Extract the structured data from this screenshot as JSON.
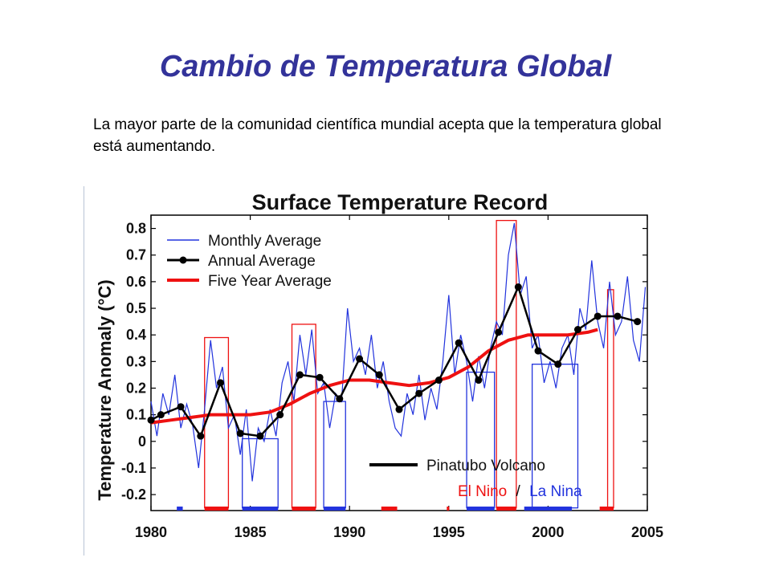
{
  "slide": {
    "title": "Cambio de Temperatura Global",
    "body": "La mayor parte de la comunidad científica mundial acepta que la temperatura global está aumentando."
  },
  "colors": {
    "title": "#33339a",
    "monthly": "#2233dd",
    "annual": "#000000",
    "five_year": "#ee1111",
    "el_nino": "#ee1111",
    "la_nina": "#2233dd",
    "pinatubo": "#000000"
  },
  "chart_data": {
    "type": "line",
    "title": "Surface Temperature Record",
    "xlabel": "",
    "ylabel": "Temperature Anomaly (°C)",
    "xlim": [
      1980,
      2005
    ],
    "ylim": [
      -0.26,
      0.85
    ],
    "x_ticks": [
      1980,
      1985,
      1990,
      1995,
      2000,
      2005
    ],
    "y_ticks": [
      -0.2,
      -0.1,
      0,
      0.1,
      0.2,
      0.3,
      0.4,
      0.5,
      0.6,
      0.7,
      0.8
    ],
    "y_tick_labels": [
      "-0.2",
      "-0.1",
      "0",
      "0.1",
      "0.2",
      "0.3",
      "0.4",
      "0.5",
      "0.6",
      "0.7",
      "0.8"
    ],
    "legend": [
      "Monthly Average",
      "Annual Average",
      "Five Year Average"
    ],
    "legend_position": "top-left",
    "series": [
      {
        "name": "Annual Average",
        "x": [
          1980,
          1980.5,
          1981.5,
          1982.5,
          1983.5,
          1984.5,
          1985.5,
          1986.5,
          1987.5,
          1988.5,
          1989.5,
          1990.5,
          1991.5,
          1992.5,
          1993.5,
          1994.5,
          1995.5,
          1996.5,
          1997.5,
          1998.5,
          1999.5,
          2000.5,
          2001.5,
          2002.5,
          2003.5,
          2004.5
        ],
        "y": [
          0.08,
          0.1,
          0.13,
          0.02,
          0.22,
          0.03,
          0.02,
          0.1,
          0.25,
          0.24,
          0.16,
          0.31,
          0.25,
          0.12,
          0.18,
          0.23,
          0.37,
          0.23,
          0.41,
          0.58,
          0.34,
          0.29,
          0.42,
          0.47,
          0.47,
          0.45
        ]
      },
      {
        "name": "Five Year Average",
        "x": [
          1980,
          1981,
          1982,
          1983,
          1984,
          1985,
          1986,
          1987,
          1988,
          1989,
          1990,
          1991,
          1992,
          1993,
          1994,
          1995,
          1996,
          1997,
          1998,
          1999,
          2000,
          2001,
          2002,
          2002.5
        ],
        "y": [
          0.07,
          0.08,
          0.09,
          0.1,
          0.1,
          0.1,
          0.11,
          0.14,
          0.18,
          0.21,
          0.23,
          0.23,
          0.22,
          0.21,
          0.22,
          0.24,
          0.28,
          0.34,
          0.38,
          0.4,
          0.4,
          0.4,
          0.41,
          0.42
        ]
      },
      {
        "name": "Monthly Average",
        "x": [
          1980,
          1980.3,
          1980.6,
          1980.9,
          1981.2,
          1981.5,
          1981.8,
          1982.1,
          1982.4,
          1982.7,
          1983.0,
          1983.3,
          1983.6,
          1983.9,
          1984.2,
          1984.5,
          1984.8,
          1985.1,
          1985.4,
          1985.7,
          1986.0,
          1986.3,
          1986.6,
          1986.9,
          1987.2,
          1987.5,
          1987.8,
          1988.1,
          1988.4,
          1988.7,
          1989.0,
          1989.3,
          1989.6,
          1989.9,
          1990.2,
          1990.5,
          1990.8,
          1991.1,
          1991.4,
          1991.7,
          1992.0,
          1992.3,
          1992.6,
          1992.9,
          1993.2,
          1993.5,
          1993.8,
          1994.1,
          1994.4,
          1994.7,
          1995.0,
          1995.3,
          1995.6,
          1995.9,
          1996.2,
          1996.5,
          1996.8,
          1997.1,
          1997.4,
          1997.7,
          1998.0,
          1998.3,
          1998.6,
          1998.9,
          1999.2,
          1999.5,
          1999.8,
          2000.1,
          2000.4,
          2000.7,
          2001.0,
          2001.3,
          2001.6,
          2001.9,
          2002.2,
          2002.5,
          2002.8,
          2003.1,
          2003.4,
          2003.7,
          2004.0,
          2004.3,
          2004.6,
          2004.9
        ],
        "y": [
          0.15,
          0.02,
          0.18,
          0.1,
          0.25,
          0.05,
          0.14,
          0.06,
          -0.1,
          0.12,
          0.38,
          0.2,
          0.28,
          0.05,
          0.1,
          -0.05,
          0.12,
          -0.15,
          0.05,
          0.0,
          0.12,
          0.02,
          0.22,
          0.3,
          0.15,
          0.4,
          0.25,
          0.42,
          0.18,
          0.22,
          0.05,
          0.18,
          0.15,
          0.5,
          0.3,
          0.35,
          0.25,
          0.4,
          0.2,
          0.3,
          0.15,
          0.05,
          0.02,
          0.18,
          0.1,
          0.25,
          0.08,
          0.2,
          0.12,
          0.3,
          0.55,
          0.25,
          0.4,
          0.3,
          0.15,
          0.32,
          0.2,
          0.35,
          0.45,
          0.4,
          0.7,
          0.82,
          0.55,
          0.62,
          0.35,
          0.4,
          0.22,
          0.3,
          0.2,
          0.35,
          0.4,
          0.25,
          0.5,
          0.42,
          0.68,
          0.45,
          0.35,
          0.6,
          0.4,
          0.45,
          0.62,
          0.38,
          0.3,
          0.58
        ]
      }
    ],
    "el_nino_boxes": [
      {
        "x0": 1982.7,
        "x1": 1983.9,
        "ymax": 0.39
      },
      {
        "x0": 1987.1,
        "x1": 1988.3,
        "ymax": 0.44
      },
      {
        "x0": 1997.4,
        "x1": 1998.4,
        "ymax": 0.83
      },
      {
        "x0": 2003.0,
        "x1": 2003.3,
        "ymax": 0.57
      }
    ],
    "la_nina_boxes": [
      {
        "x0": 1984.6,
        "x1": 1986.4,
        "ymax": 0.01
      },
      {
        "x0": 1988.7,
        "x1": 1989.8,
        "ymax": 0.15
      },
      {
        "x0": 1995.9,
        "x1": 1997.3,
        "ymax": 0.26
      },
      {
        "x0": 1999.2,
        "x1": 2001.5,
        "ymax": 0.29
      }
    ],
    "annotations": {
      "pinatubo_label": "Pinatubo Volcano",
      "el_nino_label": "El Nino",
      "separator": "/",
      "la_nina_label": "La Nina"
    },
    "event_bars": [
      {
        "type": "la_nina",
        "x0": 1981.3,
        "x1": 1981.6
      },
      {
        "type": "el_nino",
        "x0": 1982.7,
        "x1": 1983.9
      },
      {
        "type": "la_nina",
        "x0": 1984.6,
        "x1": 1986.4
      },
      {
        "type": "el_nino",
        "x0": 1987.1,
        "x1": 1988.3
      },
      {
        "type": "la_nina",
        "x0": 1988.7,
        "x1": 1989.8
      },
      {
        "type": "el_nino",
        "x0": 1991.6,
        "x1": 1992.4
      },
      {
        "type": "el_nino",
        "x0": 1994.9,
        "x1": 1995.0
      },
      {
        "type": "la_nina",
        "x0": 1995.9,
        "x1": 1997.3
      },
      {
        "type": "el_nino",
        "x0": 1997.4,
        "x1": 1998.4
      },
      {
        "type": "la_nina",
        "x0": 1998.8,
        "x1": 2001.2
      },
      {
        "type": "el_nino",
        "x0": 2002.6,
        "x1": 2003.3
      }
    ]
  }
}
